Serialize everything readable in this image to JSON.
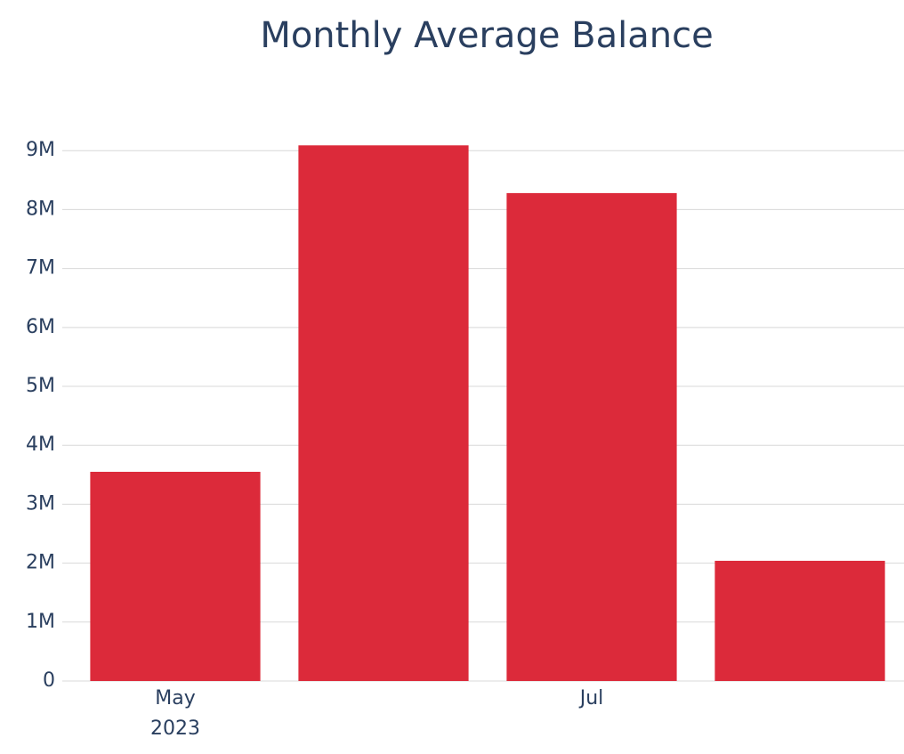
{
  "chart_data": {
    "type": "bar",
    "title": "Monthly Average Balance",
    "categories": [
      "May\n2023",
      null,
      "Jul",
      null
    ],
    "values": [
      3550000,
      9090000,
      8280000,
      2040000
    ],
    "color": "#dc2a3a",
    "ylim": [
      0,
      9200000
    ],
    "yticks": [
      0,
      {
        "value": 1000000,
        "label": "1M"
      },
      {
        "value": 2000000,
        "label": "2M"
      },
      {
        "value": 3000000,
        "label": "3M"
      },
      {
        "value": 4000000,
        "label": "4M"
      },
      {
        "value": 5000000,
        "label": "5M"
      },
      {
        "value": 6000000,
        "label": "6M"
      },
      {
        "value": 7000000,
        "label": "7M"
      },
      {
        "value": 8000000,
        "label": "8M"
      },
      {
        "value": 9000000,
        "label": "9M"
      }
    ],
    "grid": true
  }
}
